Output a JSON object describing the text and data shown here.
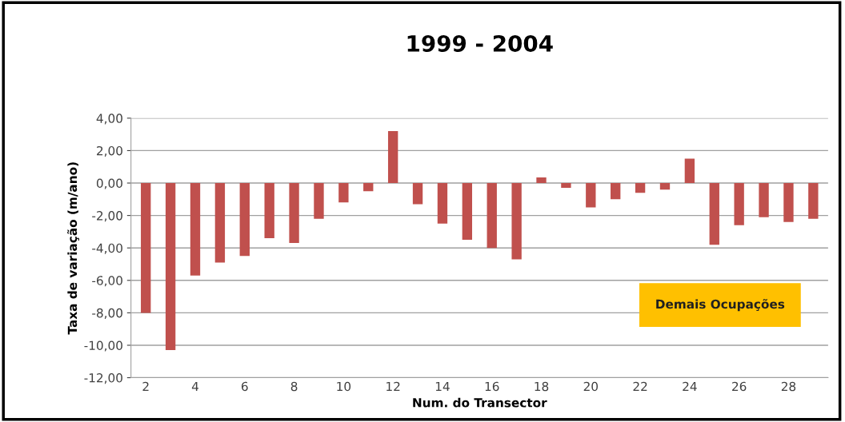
{
  "chart_data": {
    "type": "bar",
    "title": "1999 - 2004",
    "xlabel": "Num. do Transector",
    "ylabel": "Taxa de variação (m/ano)",
    "categories": [
      "2",
      null,
      "4",
      null,
      "6",
      null,
      "8",
      null,
      "10",
      null,
      "12",
      null,
      "14",
      null,
      "16",
      null,
      "18",
      null,
      "20",
      null,
      "22",
      null,
      "24",
      null,
      "26",
      null,
      "28",
      null
    ],
    "values": [
      -8.0,
      -10.3,
      -5.7,
      -4.9,
      -4.5,
      -3.4,
      -3.7,
      -2.2,
      -1.2,
      -0.5,
      3.2,
      -1.3,
      -2.5,
      -3.5,
      -4.0,
      -4.7,
      0.35,
      -0.3,
      -1.5,
      -1.0,
      -0.6,
      -0.4,
      1.5,
      -3.8,
      -2.6,
      -2.1,
      -2.4,
      -2.2
    ],
    "color": "#c0504d",
    "ylim": [
      -12,
      4
    ],
    "yticks": [
      {
        "value": -12,
        "label": "-12,00"
      },
      {
        "value": -10,
        "label": "-10,00"
      },
      {
        "value": -8,
        "label": "-8,00"
      },
      {
        "value": -6,
        "label": "-6,00"
      },
      {
        "value": -4,
        "label": "-4,00"
      },
      {
        "value": -2,
        "label": "-2,00"
      },
      {
        "value": 0,
        "label": "0,00"
      },
      {
        "value": 2,
        "label": "2,00"
      },
      {
        "value": 4,
        "label": "4,00"
      }
    ],
    "grid": "y",
    "annotations": [
      "Demais Ocupações"
    ]
  }
}
